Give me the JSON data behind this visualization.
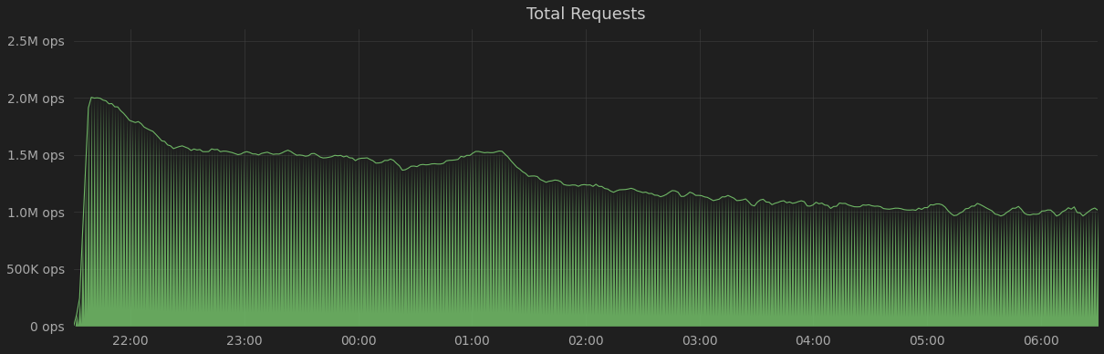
{
  "title": "Total Requests",
  "title_color": "#cccccc",
  "background_color": "#1f1f1f",
  "plot_bg_color": "#1f1f1f",
  "grid_color": "#444444",
  "line_color": "#73bf69",
  "fill_color": "#73bf69",
  "fill_alpha": 0.85,
  "line_width": 0.8,
  "ylabel_ticks": [
    "0 ops",
    "500K ops",
    "1.0M ops",
    "1.5M ops",
    "2.0M ops",
    "2.5M ops"
  ],
  "ytick_values": [
    0,
    500000,
    1000000,
    1500000,
    2000000,
    2500000
  ],
  "ylim": [
    0,
    2600000
  ],
  "xlim_start": 0,
  "xlim_end": 540,
  "xtick_positions": [
    30,
    90,
    150,
    210,
    270,
    330,
    390,
    450,
    510
  ],
  "xtick_labels": [
    "22:00",
    "23:00",
    "00:00",
    "01:00",
    "02:00",
    "03:00",
    "04:00",
    "05:00",
    "06:00"
  ],
  "tick_color": "#aaaaaa",
  "tick_fontsize": 10,
  "title_fontsize": 13
}
